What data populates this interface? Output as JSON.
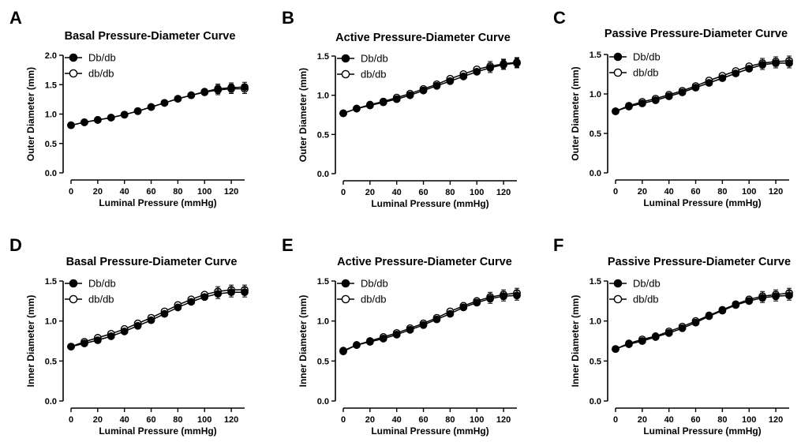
{
  "chart_data": [
    {
      "panel": "A",
      "type": "line",
      "title": "Basal Pressure-Diameter Curve",
      "xlabel": "Luminal Pressure (mmHg)",
      "ylabel": "Outer Diameter (mm)",
      "xlim": [
        0,
        130
      ],
      "ylim": [
        0,
        2.0
      ],
      "xticks": [
        0,
        20,
        40,
        60,
        80,
        100,
        120
      ],
      "yticks": [
        "0.0",
        "0.5",
        "1.0",
        "1.5",
        "2.0"
      ],
      "x": [
        0,
        10,
        20,
        30,
        40,
        50,
        60,
        70,
        80,
        90,
        100,
        110,
        120,
        130
      ],
      "legend_position": "top-left",
      "series": [
        {
          "name": "Db/db",
          "marker": "filled-circle",
          "values": [
            0.81,
            0.86,
            0.9,
            0.94,
            0.99,
            1.05,
            1.12,
            1.19,
            1.26,
            1.32,
            1.38,
            1.43,
            1.45,
            1.46
          ]
        },
        {
          "name": "db/db",
          "marker": "open-circle",
          "values": [
            0.81,
            0.86,
            0.9,
            0.94,
            0.99,
            1.05,
            1.12,
            1.19,
            1.26,
            1.32,
            1.37,
            1.41,
            1.43,
            1.43
          ]
        }
      ]
    },
    {
      "panel": "B",
      "type": "line",
      "title": "Active Pressure-Diameter Curve",
      "xlabel": "Luminal Pressure (mmHg)",
      "ylabel": "Outer Diameter (mm)",
      "xlim": [
        0,
        130
      ],
      "ylim": [
        0,
        1.5
      ],
      "xticks": [
        0,
        20,
        40,
        60,
        80,
        100,
        120
      ],
      "yticks": [
        "0.0",
        "0.5",
        "1.0",
        "1.5"
      ],
      "x": [
        0,
        10,
        20,
        30,
        40,
        50,
        60,
        70,
        80,
        90,
        100,
        110,
        120,
        130
      ],
      "legend_position": "top-left",
      "series": [
        {
          "name": "Db/db",
          "marker": "filled-circle",
          "values": [
            0.77,
            0.83,
            0.87,
            0.91,
            0.95,
            1.0,
            1.06,
            1.12,
            1.18,
            1.24,
            1.3,
            1.35,
            1.39,
            1.41
          ]
        },
        {
          "name": "db/db",
          "marker": "open-circle",
          "values": [
            0.77,
            0.83,
            0.88,
            0.92,
            0.97,
            1.02,
            1.08,
            1.14,
            1.21,
            1.27,
            1.33,
            1.37,
            1.4,
            1.42
          ]
        }
      ]
    },
    {
      "panel": "C",
      "type": "line",
      "title": "Passive Pressure-Diameter Curve",
      "xlabel": "Luminal Pressure (mmHg)",
      "ylabel": "Outer Diameter (mm)",
      "xlim": [
        0,
        130
      ],
      "ylim": [
        0,
        1.5
      ],
      "xticks": [
        0,
        20,
        40,
        60,
        80,
        100,
        120
      ],
      "yticks": [
        "0.0",
        "0.5",
        "1.0",
        "1.5"
      ],
      "x": [
        0,
        10,
        20,
        30,
        40,
        50,
        60,
        70,
        80,
        90,
        100,
        110,
        120,
        130
      ],
      "legend_position": "top-left",
      "series": [
        {
          "name": "Db/db",
          "marker": "filled-circle",
          "values": [
            0.78,
            0.84,
            0.88,
            0.92,
            0.97,
            1.02,
            1.08,
            1.14,
            1.2,
            1.26,
            1.32,
            1.37,
            1.39,
            1.39
          ]
        },
        {
          "name": "db/db",
          "marker": "open-circle",
          "values": [
            0.78,
            0.85,
            0.9,
            0.94,
            0.99,
            1.04,
            1.1,
            1.17,
            1.23,
            1.29,
            1.35,
            1.39,
            1.41,
            1.42
          ]
        }
      ]
    },
    {
      "panel": "D",
      "type": "line",
      "title": "Basal Pressure-Diameter Curve",
      "xlabel": "Luminal Pressure (mmHg)",
      "ylabel": "Inner Diameter (mm)",
      "xlim": [
        0,
        130
      ],
      "ylim": [
        0,
        1.5
      ],
      "xticks": [
        0,
        20,
        40,
        60,
        80,
        100,
        120
      ],
      "yticks": [
        "0.0",
        "0.5",
        "1.0",
        "1.5"
      ],
      "x": [
        0,
        10,
        20,
        30,
        40,
        50,
        60,
        70,
        80,
        90,
        100,
        110,
        120,
        130
      ],
      "legend_position": "top-left",
      "series": [
        {
          "name": "Db/db",
          "marker": "filled-circle",
          "values": [
            0.68,
            0.72,
            0.76,
            0.81,
            0.87,
            0.94,
            1.01,
            1.09,
            1.17,
            1.24,
            1.3,
            1.34,
            1.36,
            1.36
          ]
        },
        {
          "name": "db/db",
          "marker": "open-circle",
          "values": [
            0.68,
            0.74,
            0.79,
            0.84,
            0.9,
            0.97,
            1.04,
            1.12,
            1.2,
            1.27,
            1.33,
            1.37,
            1.39,
            1.39
          ]
        }
      ]
    },
    {
      "panel": "E",
      "type": "line",
      "title": "Active Pressure-Diameter Curve",
      "xlabel": "Luminal Pressure (mmHg)",
      "ylabel": "Inner Diameter (mm)",
      "xlim": [
        0,
        130
      ],
      "ylim": [
        0,
        1.5
      ],
      "xticks": [
        0,
        20,
        40,
        60,
        80,
        100,
        120
      ],
      "yticks": [
        "0.0",
        "0.5",
        "1.0",
        "1.5"
      ],
      "x": [
        0,
        10,
        20,
        30,
        40,
        50,
        60,
        70,
        80,
        90,
        100,
        110,
        120,
        130
      ],
      "legend_position": "top-left",
      "series": [
        {
          "name": "Db/db",
          "marker": "filled-circle",
          "values": [
            0.63,
            0.7,
            0.74,
            0.78,
            0.83,
            0.89,
            0.95,
            1.02,
            1.09,
            1.17,
            1.23,
            1.28,
            1.31,
            1.32
          ]
        },
        {
          "name": "db/db",
          "marker": "open-circle",
          "values": [
            0.62,
            0.7,
            0.75,
            0.8,
            0.85,
            0.91,
            0.97,
            1.04,
            1.12,
            1.19,
            1.25,
            1.3,
            1.33,
            1.35
          ]
        }
      ]
    },
    {
      "panel": "F",
      "type": "line",
      "title": "Passive Pressure-Diameter Curve",
      "xlabel": "Luminal Pressure (mmHg)",
      "ylabel": "Inner Diameter (mm)",
      "xlim": [
        0,
        130
      ],
      "ylim": [
        0,
        1.5
      ],
      "xticks": [
        0,
        20,
        40,
        60,
        80,
        100,
        120
      ],
      "yticks": [
        "0.0",
        "0.5",
        "1.0",
        "1.5"
      ],
      "x": [
        0,
        10,
        20,
        30,
        40,
        50,
        60,
        70,
        80,
        90,
        100,
        110,
        120,
        130
      ],
      "legend_position": "top-left",
      "series": [
        {
          "name": "Db/db",
          "marker": "filled-circle",
          "values": [
            0.65,
            0.71,
            0.75,
            0.8,
            0.85,
            0.91,
            0.98,
            1.06,
            1.13,
            1.2,
            1.25,
            1.29,
            1.31,
            1.32
          ]
        },
        {
          "name": "db/db",
          "marker": "open-circle",
          "values": [
            0.65,
            0.72,
            0.77,
            0.81,
            0.87,
            0.93,
            1.0,
            1.07,
            1.14,
            1.21,
            1.27,
            1.31,
            1.33,
            1.35
          ]
        }
      ]
    }
  ]
}
